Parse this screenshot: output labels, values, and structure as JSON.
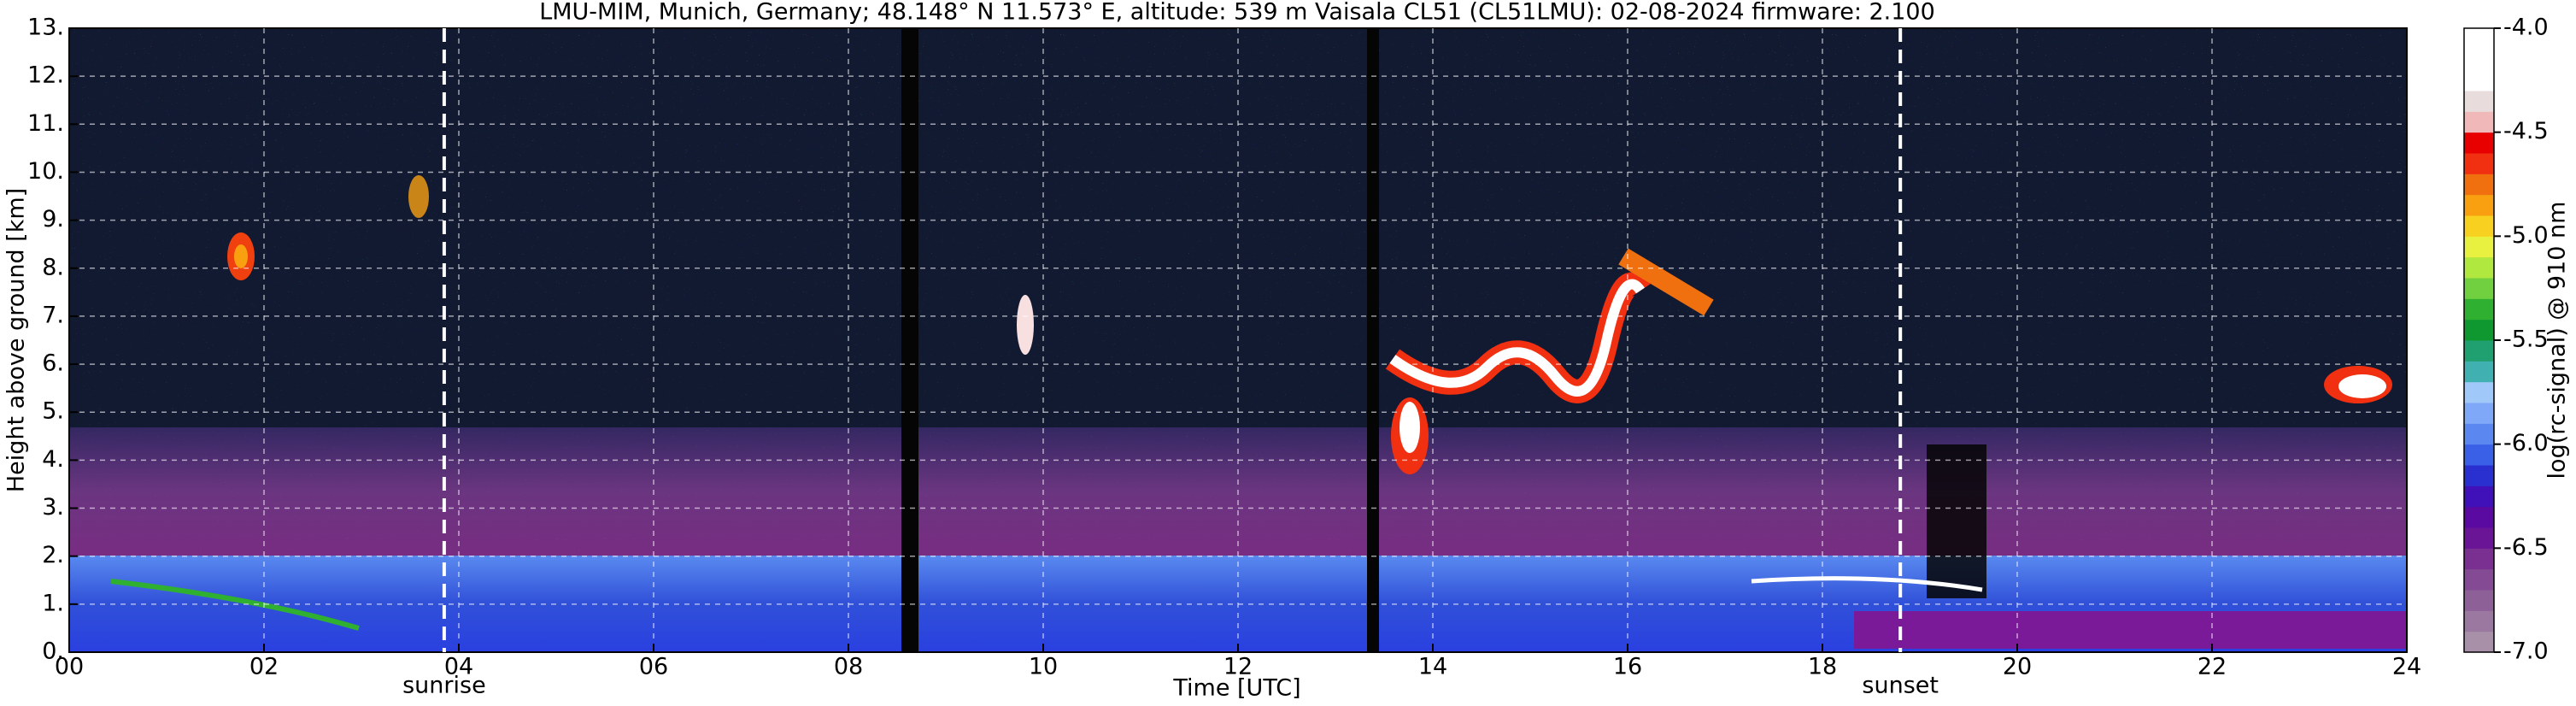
{
  "chart_data": {
    "type": "heatmap",
    "title": "LMU-MIM, Munich, Germany; 48.148° N 11.573° E, altitude: 539 m    Vaisala CL51 (CL51LMU): 02-08-2024    firmware: 2.100",
    "xlabel": "Time [UTC]",
    "ylabel": "Height above ground [km]",
    "xlim": [
      0,
      24
    ],
    "ylim": [
      0,
      13
    ],
    "xticks": [
      {
        "value": 0,
        "label": "00"
      },
      {
        "value": 2,
        "label": "02"
      },
      {
        "value": 4,
        "label": "04"
      },
      {
        "value": 6,
        "label": "06"
      },
      {
        "value": 8,
        "label": "08"
      },
      {
        "value": 10,
        "label": "10"
      },
      {
        "value": 12,
        "label": "12"
      },
      {
        "value": 14,
        "label": "14"
      },
      {
        "value": 16,
        "label": "16"
      },
      {
        "value": 18,
        "label": "18"
      },
      {
        "value": 20,
        "label": "20"
      },
      {
        "value": 22,
        "label": "22"
      },
      24
    ],
    "yticks": [
      {
        "value": 0,
        "label": "0."
      },
      {
        "value": 1,
        "label": "1."
      },
      {
        "value": 2,
        "label": "2."
      },
      {
        "value": 3,
        "label": "3."
      },
      {
        "value": 4,
        "label": "4."
      },
      {
        "value": 5,
        "label": "5."
      },
      {
        "value": 6,
        "label": "6."
      },
      {
        "value": 7,
        "label": "7."
      },
      {
        "value": 8,
        "label": "8."
      },
      {
        "value": 9,
        "label": "9."
      },
      {
        "value": 10,
        "label": "10."
      },
      {
        "value": 11,
        "label": "11."
      },
      {
        "value": 12,
        "label": "12."
      },
      {
        "value": 13,
        "label": "13."
      }
    ],
    "grid": true,
    "annotations": [
      {
        "text": "sunrise",
        "x": 3.85
      },
      {
        "text": "sunset",
        "x": 18.8
      }
    ],
    "colorbar": {
      "label": "log(rc-signal) @ 910 nm",
      "lim": [
        -7.0,
        -4.0
      ],
      "ticks": [
        {
          "value": -4.0,
          "label": "-4.0"
        },
        {
          "value": -4.5,
          "label": "-4.5"
        },
        {
          "value": -5.0,
          "label": "-5.0"
        },
        {
          "value": -5.5,
          "label": "-5.5"
        },
        {
          "value": -6.0,
          "label": "-6.0"
        },
        {
          "value": -6.5,
          "label": "-6.5"
        },
        {
          "value": -7.0,
          "label": "-7.0"
        }
      ],
      "colors": [
        "#a890a8",
        "#9a78a0",
        "#8e6098",
        "#844a94",
        "#7a3090",
        "#6a1496",
        "#5a0aa0",
        "#4010b8",
        "#2a30d0",
        "#3a60e8",
        "#5a88f0",
        "#80a8f8",
        "#a0c8f8",
        "#40b0b0",
        "#20a070",
        "#109830",
        "#30b030",
        "#70d040",
        "#b0e840",
        "#e8f040",
        "#f8d020",
        "#f8a010",
        "#f07010",
        "#f03010",
        "#e80000",
        "#f0b8b8",
        "#e8dcdc",
        "#ffffff",
        "#ffffff",
        "#ffffff"
      ]
    }
  }
}
